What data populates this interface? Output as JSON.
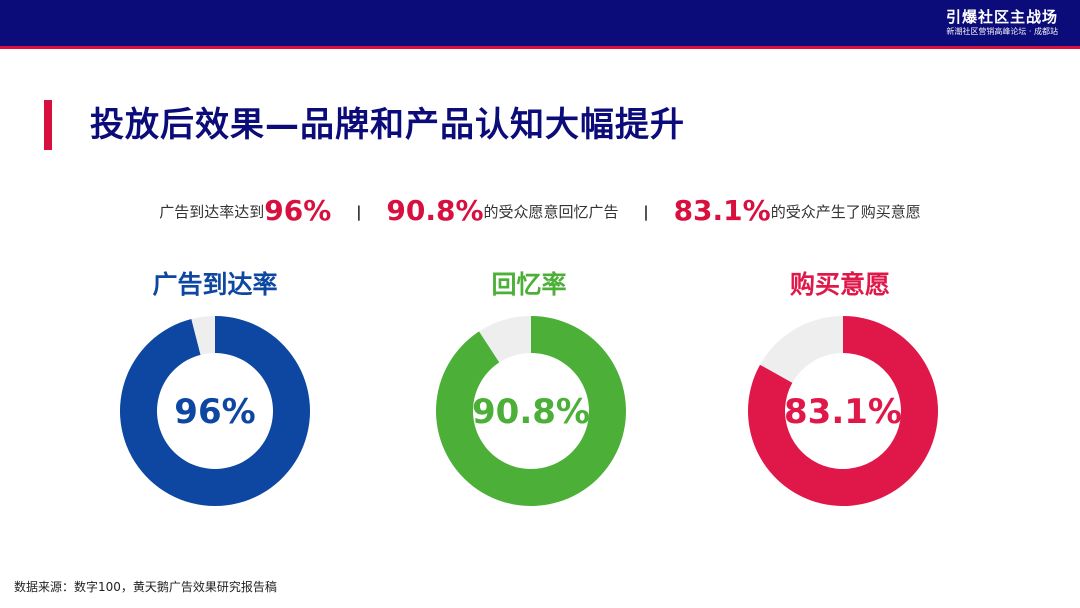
{
  "header": {
    "brand_title": "引爆社区主战场",
    "brand_subtitle": "新潮社区营销高峰论坛 · 成都站"
  },
  "page_title": "投放后效果—品牌和产品认知大幅提升",
  "summary": {
    "part1_prefix": "广告到达率达到",
    "part1_value": "96%",
    "separator": "|",
    "part2_value": "90.8%",
    "part2_suffix": "的受众愿意回忆广告",
    "part3_value": "83.1%",
    "part3_suffix": "的受众产生了购买意愿"
  },
  "source": "数据来源：数字100，黄天鹅广告效果研究报告稿",
  "colors": {
    "navy": "#0b0b7a",
    "accent_red": "#d8103f",
    "remainder": "#eeeeee"
  },
  "chart_data": [
    {
      "type": "pie",
      "title": "广告到达率",
      "value": 96,
      "label": "96%",
      "color": "#0d47a1"
    },
    {
      "type": "pie",
      "title": "回忆率",
      "value": 90.8,
      "label": "90.8%",
      "color": "#4caf38"
    },
    {
      "type": "pie",
      "title": "购买意愿",
      "value": 83.1,
      "label": "83.1%",
      "color": "#e0184a"
    }
  ]
}
